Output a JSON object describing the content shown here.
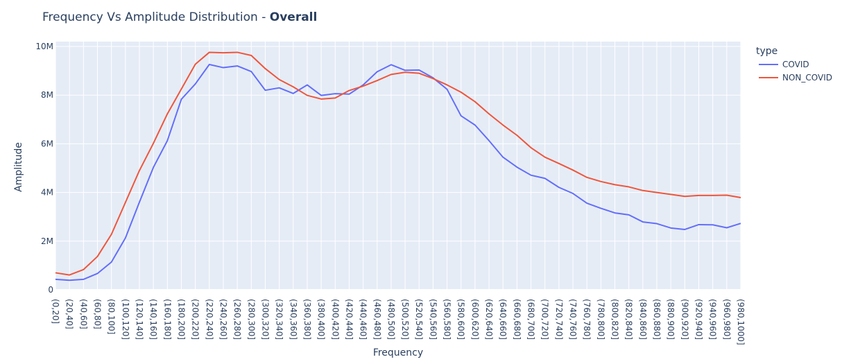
{
  "chart_data": {
    "type": "line",
    "title_prefix": "Frequency Vs Amplitude Distribution - ",
    "title_bold": "Overall",
    "xlabel": "Frequency",
    "ylabel": "Amplitude",
    "ylim": [
      0,
      10200000
    ],
    "y_ticks": [
      0,
      2000000,
      4000000,
      6000000,
      8000000,
      10000000
    ],
    "y_tick_labels": [
      "0",
      "2M",
      "4M",
      "6M",
      "8M",
      "10M"
    ],
    "grid": true,
    "legend_title": "type",
    "legend_position": "right",
    "categories": [
      "(0,20]",
      "(20,40]",
      "(40,60]",
      "(60,80]",
      "(80,100]",
      "(100,120]",
      "(120,140]",
      "(140,160]",
      "(160,180]",
      "(180,200]",
      "(200,220]",
      "(220,240]",
      "(240,260]",
      "(260,280]",
      "(280,300]",
      "(300,320]",
      "(320,340]",
      "(340,360]",
      "(360,380]",
      "(380,400]",
      "(400,420]",
      "(420,440]",
      "(440,460]",
      "(460,480]",
      "(480,500]",
      "(500,520]",
      "(520,540]",
      "(540,560]",
      "(560,580]",
      "(580,600]",
      "(600,620]",
      "(620,640]",
      "(640,660]",
      "(660,680]",
      "(680,700]",
      "(700,720]",
      "(720,740]",
      "(740,760]",
      "(760,780]",
      "(780,800]",
      "(800,820]",
      "(820,840]",
      "(840,860]",
      "(860,880]",
      "(880,900]",
      "(900,920]",
      "(920,940]",
      "(940,960]",
      "(960,980]",
      "(980,1000]"
    ],
    "series": [
      {
        "name": "COVID",
        "color": "#636efa",
        "values": [
          430000,
          390000,
          430000,
          670000,
          1140000,
          2130000,
          3600000,
          5030000,
          6130000,
          7830000,
          8460000,
          9260000,
          9130000,
          9200000,
          8970000,
          8200000,
          8300000,
          8070000,
          8420000,
          7990000,
          8060000,
          8040000,
          8420000,
          8960000,
          9250000,
          9020000,
          9030000,
          8710000,
          8240000,
          7150000,
          6770000,
          6130000,
          5450000,
          5040000,
          4710000,
          4580000,
          4210000,
          3960000,
          3560000,
          3350000,
          3160000,
          3080000,
          2790000,
          2720000,
          2540000,
          2480000,
          2680000,
          2670000,
          2550000,
          2730000
        ]
      },
      {
        "name": "NON_COVID",
        "color": "#ef553b",
        "values": [
          700000,
          610000,
          830000,
          1370000,
          2280000,
          3590000,
          4900000,
          6020000,
          7230000,
          8250000,
          9270000,
          9760000,
          9740000,
          9760000,
          9630000,
          9090000,
          8640000,
          8340000,
          7990000,
          7840000,
          7880000,
          8190000,
          8370000,
          8600000,
          8850000,
          8940000,
          8900000,
          8680000,
          8420000,
          8120000,
          7730000,
          7230000,
          6770000,
          6350000,
          5840000,
          5450000,
          5190000,
          4920000,
          4620000,
          4450000,
          4320000,
          4230000,
          4080000,
          4000000,
          3920000,
          3840000,
          3880000,
          3880000,
          3890000,
          3790000
        ]
      }
    ]
  }
}
